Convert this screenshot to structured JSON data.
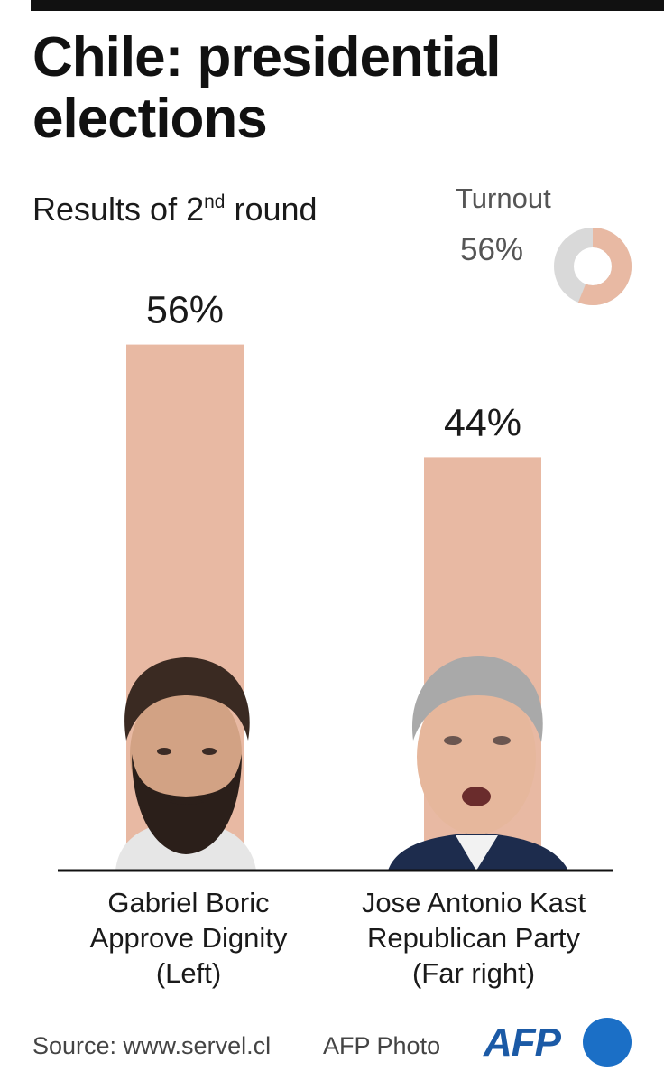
{
  "header": {
    "title": "Chile: presidential elections",
    "subtitle_main": "Results of 2",
    "subtitle_sup": "nd",
    "subtitle_rest": " round"
  },
  "turnout": {
    "label": "Turnout",
    "value_text": "56%",
    "value": 56,
    "fill_color": "#e8b9a3",
    "rest_color": "#d9d9d9"
  },
  "chart_data": {
    "type": "bar",
    "categories": [
      "Gabriel Boric",
      "Jose Antonio Kast"
    ],
    "values": [
      56,
      44
    ],
    "value_labels": [
      "56%",
      "44%"
    ],
    "title": "Chile: presidential elections",
    "subtitle": "Results of 2nd round",
    "ylim": [
      0,
      100
    ],
    "grid": false,
    "bar_color": "#e8b9a3"
  },
  "candidates": [
    {
      "name": "Gabriel Boric",
      "party": "Approve Dignity",
      "orientation": "(Left)",
      "photo_icon": "candidate-portrait-icon"
    },
    {
      "name": "Jose Antonio Kast",
      "party": "Republican Party",
      "orientation": "(Far right)",
      "photo_icon": "candidate-portrait-icon"
    }
  ],
  "footer": {
    "source": "Source: www.servel.cl",
    "photo_credit": "AFP Photo",
    "logo_text": "AFP",
    "logo_color": "#1b5aa6"
  }
}
